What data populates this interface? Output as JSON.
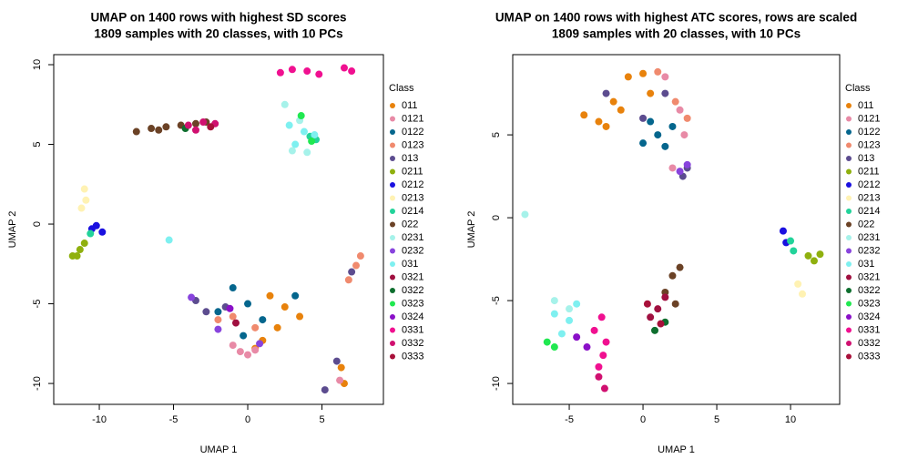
{
  "chart_data": [
    {
      "type": "scatter",
      "title": "UMAP on 1400 rows with highest SD scores",
      "subtitle": "1809 samples with 20 classes, with 10 PCs",
      "xlabel": "UMAP 1",
      "ylabel": "UMAP 2",
      "xlim": [
        -13.07,
        9.14
      ],
      "ylim": [
        -11.31,
        10.63
      ],
      "xticks": [
        -10,
        -5,
        0,
        5
      ],
      "yticks": [
        -10,
        -5,
        0,
        5,
        10
      ],
      "legend_title": "Class",
      "legend": "right",
      "series": [
        {
          "name": "011",
          "color": "#e8820c",
          "x": [
            1.5,
            2.5,
            3.5,
            2,
            1,
            6.3,
            6.5,
            0.5
          ],
          "y": [
            -4.5,
            -5.2,
            -5.8,
            -6.5,
            -7.3,
            -9,
            -10,
            -7.8
          ]
        },
        {
          "name": "0121",
          "color": "#e88aa6",
          "x": [
            -0.5,
            0,
            -1,
            0.5,
            6.2
          ],
          "y": [
            -8,
            -8.2,
            -7.6,
            -7.9,
            -9.8
          ]
        },
        {
          "name": "0122",
          "color": "#05668d",
          "x": [
            -1,
            0,
            -2,
            1,
            -0.3,
            3.2
          ],
          "y": [
            -4,
            -5,
            -5.5,
            -6,
            -7,
            -4.5
          ]
        },
        {
          "name": "0123",
          "color": "#f08a6e",
          "x": [
            -2,
            -1,
            0.5,
            6.8,
            7.3,
            7.6
          ],
          "y": [
            -6,
            -5.8,
            -6.5,
            -3.5,
            -2.6,
            -2
          ]
        },
        {
          "name": "013",
          "color": "#5c4c8f",
          "x": [
            -3.5,
            -2.8,
            -1.5,
            6,
            5.2,
            7
          ],
          "y": [
            -4.8,
            -5.5,
            -5.2,
            -8.6,
            -10.4,
            -3
          ]
        },
        {
          "name": "0211",
          "color": "#8fb00e",
          "x": [
            -11.8,
            -11.3,
            -11,
            -11.5
          ],
          "y": [
            -2,
            -1.6,
            -1.2,
            -2
          ]
        },
        {
          "name": "0212",
          "color": "#1a10e0",
          "x": [
            -10.2,
            -9.8,
            -10.5
          ],
          "y": [
            -0.1,
            -0.5,
            -0.3
          ]
        },
        {
          "name": "0213",
          "color": "#fff2b3",
          "x": [
            -11,
            -10.9,
            -11.2
          ],
          "y": [
            2.2,
            1.5,
            1
          ]
        },
        {
          "name": "0214",
          "color": "#22d39a",
          "x": [
            -10.6,
            4.6,
            4.2
          ],
          "y": [
            -0.6,
            5.3,
            5.5
          ]
        },
        {
          "name": "022",
          "color": "#6b4226",
          "x": [
            -7.5,
            -6.5,
            -5.5,
            -4.5,
            -3.5,
            -6,
            -2.8
          ],
          "y": [
            5.8,
            6,
            6.1,
            6.2,
            6.3,
            5.9,
            6.4
          ]
        },
        {
          "name": "0231",
          "color": "#a6f2ea",
          "x": [
            3,
            4,
            3.5,
            2.5
          ],
          "y": [
            4.6,
            4.5,
            6.5,
            7.5
          ]
        },
        {
          "name": "0232",
          "color": "#8844dd",
          "x": [
            -3.8,
            -2,
            0.8
          ],
          "y": [
            -4.6,
            -6.6,
            -7.5
          ]
        },
        {
          "name": "031",
          "color": "#7ef0f0",
          "x": [
            -5.3,
            3.2,
            3.8,
            2.8,
            4.5
          ],
          "y": [
            -1,
            5,
            5.8,
            6.2,
            5.6
          ]
        },
        {
          "name": "0321",
          "color": "#a01040",
          "x": [
            -0.8
          ],
          "y": [
            -6.2
          ]
        },
        {
          "name": "0322",
          "color": "#0e6e2e",
          "x": [
            -4.2
          ],
          "y": [
            6
          ]
        },
        {
          "name": "0323",
          "color": "#20e850",
          "x": [
            4.3,
            3.6
          ],
          "y": [
            5.2,
            6.8
          ]
        },
        {
          "name": "0324",
          "color": "#8a10c8",
          "x": [
            -1.2
          ],
          "y": [
            -5.3
          ]
        },
        {
          "name": "0331",
          "color": "#f01090",
          "x": [
            2.2,
            3,
            4,
            4.8,
            6.5,
            7
          ],
          "y": [
            9.5,
            9.7,
            9.6,
            9.4,
            9.8,
            9.6
          ]
        },
        {
          "name": "0332",
          "color": "#d01070",
          "x": [
            -4,
            -3,
            -2.2,
            -3.5
          ],
          "y": [
            6.2,
            6.4,
            6.3,
            5.9
          ]
        },
        {
          "name": "0333",
          "color": "#a8103a",
          "x": [
            -2.5
          ],
          "y": [
            6.1
          ]
        }
      ]
    },
    {
      "type": "scatter",
      "title": "UMAP on 1400 rows with highest ATC scores, rows are scaled",
      "subtitle": "1809 samples with 20 classes, with 10 PCs",
      "xlabel": "UMAP 1",
      "ylabel": "UMAP 2",
      "xlim": [
        -8.83,
        13.33
      ],
      "ylim": [
        -11.26,
        9.84
      ],
      "xticks": [
        -5,
        0,
        5,
        10
      ],
      "yticks": [
        -10,
        -5,
        0,
        5
      ],
      "legend_title": "Class",
      "legend": "right",
      "series": [
        {
          "name": "011",
          "color": "#e8820c",
          "x": [
            -4,
            -3,
            -2,
            -1,
            0,
            -2.5,
            0.5,
            -1.5
          ],
          "y": [
            6.2,
            5.8,
            7,
            8.5,
            8.7,
            5.5,
            7.5,
            6.5
          ]
        },
        {
          "name": "0121",
          "color": "#e88aa6",
          "x": [
            1.5,
            2.5,
            2.8,
            2
          ],
          "y": [
            8.5,
            6.5,
            5,
            3
          ]
        },
        {
          "name": "0122",
          "color": "#05668d",
          "x": [
            0,
            1,
            2,
            1.5,
            0.5
          ],
          "y": [
            4.5,
            5,
            5.5,
            4.3,
            5.8
          ]
        },
        {
          "name": "0123",
          "color": "#f08a6e",
          "x": [
            1,
            2.2,
            3
          ],
          "y": [
            8.8,
            7,
            6
          ]
        },
        {
          "name": "013",
          "color": "#5c4c8f",
          "x": [
            -2.5,
            0,
            1.5,
            3,
            2.7
          ],
          "y": [
            7.5,
            6,
            7.5,
            3,
            2.5
          ]
        },
        {
          "name": "0211",
          "color": "#8fb00e",
          "x": [
            11.2,
            12,
            11.6
          ],
          "y": [
            -2.3,
            -2.2,
            -2.6
          ]
        },
        {
          "name": "0212",
          "color": "#1a10e0",
          "x": [
            9.5,
            9.7
          ],
          "y": [
            -0.8,
            -1.5
          ]
        },
        {
          "name": "0213",
          "color": "#fff2b3",
          "x": [
            10.5,
            10.8
          ],
          "y": [
            -4,
            -4.6
          ]
        },
        {
          "name": "0214",
          "color": "#22d39a",
          "x": [
            10,
            10.2
          ],
          "y": [
            -1.4,
            -2
          ]
        },
        {
          "name": "022",
          "color": "#6b4226",
          "x": [
            2,
            2.5,
            1.5,
            2.2
          ],
          "y": [
            -3.5,
            -3,
            -4.5,
            -5.2
          ]
        },
        {
          "name": "0231",
          "color": "#a6f2ea",
          "x": [
            -8,
            -6,
            -5
          ],
          "y": [
            0.2,
            -5,
            -5.5
          ]
        },
        {
          "name": "0232",
          "color": "#8844dd",
          "x": [
            2.5,
            3
          ],
          "y": [
            2.8,
            3.2
          ]
        },
        {
          "name": "031",
          "color": "#7ef0f0",
          "x": [
            -6,
            -5,
            -4.5,
            -5.5
          ],
          "y": [
            -5.8,
            -6.2,
            -5.2,
            -7
          ]
        },
        {
          "name": "0321",
          "color": "#a01040",
          "x": [
            1,
            0.5,
            1.5
          ],
          "y": [
            -5.5,
            -6,
            -4.8
          ]
        },
        {
          "name": "0322",
          "color": "#0e6e2e",
          "x": [
            0.8,
            1.5
          ],
          "y": [
            -6.8,
            -6.3
          ]
        },
        {
          "name": "0323",
          "color": "#20e850",
          "x": [
            -6.5,
            -6
          ],
          "y": [
            -7.5,
            -7.8
          ]
        },
        {
          "name": "0324",
          "color": "#8a10c8",
          "x": [
            -4.5,
            -3.8
          ],
          "y": [
            -7.2,
            -7.8
          ]
        },
        {
          "name": "0331",
          "color": "#f01090",
          "x": [
            -2.8,
            -2.5,
            -3,
            -2.7,
            -3.3
          ],
          "y": [
            -6,
            -7.5,
            -9,
            -8.3,
            -6.8
          ]
        },
        {
          "name": "0332",
          "color": "#d01070",
          "x": [
            -2.6,
            -3
          ],
          "y": [
            -10.3,
            -9.6
          ]
        },
        {
          "name": "0333",
          "color": "#a8103a",
          "x": [
            0.3,
            1.2
          ],
          "y": [
            -5.2,
            -6.4
          ]
        }
      ]
    }
  ]
}
